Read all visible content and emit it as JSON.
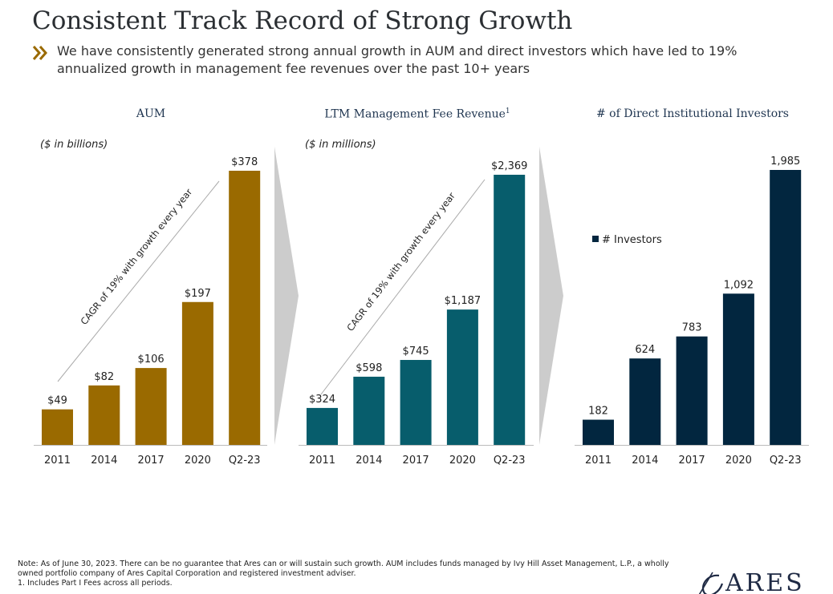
{
  "title": "Consistent Track Record of Strong Growth",
  "subtitle": "We have consistently generated strong annual growth in AUM and direct investors which have led to 19% annualized growth in management fee revenues over the past 10+ years",
  "note": "Note: As of June 30, 2023. There can be no guarantee that Ares can or will sustain such growth. AUM includes funds managed by Ivy Hill Asset Management, L.P., a wholly owned portfolio company of Ares Capital Corporation and registered investment adviser.",
  "footnote": "1.      Includes Part I Fees across all periods.",
  "logo": "ARES",
  "colors": {
    "aum": "#9a6a00",
    "fee": "#075d6c",
    "investors": "#02263f",
    "arrow": "#cccccc"
  },
  "chart_data": [
    {
      "type": "bar",
      "title": "AUM",
      "units": "($ in billions)",
      "categories": [
        "2011",
        "2014",
        "2017",
        "2020",
        "Q2-23"
      ],
      "values": [
        49,
        82,
        106,
        197,
        378
      ],
      "value_labels": [
        "$49",
        "$82",
        "$106",
        "$197",
        "$378"
      ],
      "annotation": "CAGR of 19% with growth every year",
      "ylim": [
        0,
        378
      ]
    },
    {
      "type": "bar",
      "title": "LTM Management Fee Revenue",
      "title_sup": "1",
      "units": "($ in millions)",
      "categories": [
        "2011",
        "2014",
        "2017",
        "2020",
        "Q2-23"
      ],
      "values": [
        324,
        598,
        745,
        1187,
        2369
      ],
      "value_labels": [
        "$324",
        "$598",
        "$745",
        "$1,187",
        "$2,369"
      ],
      "annotation": "CAGR of 19% with growth every year",
      "ylim": [
        0,
        2369
      ]
    },
    {
      "type": "bar",
      "title": "# of Direct Institutional Investors",
      "legend": "# Investors",
      "categories": [
        "2011",
        "2014",
        "2017",
        "2020",
        "Q2-23"
      ],
      "values": [
        182,
        624,
        783,
        1092,
        1985
      ],
      "value_labels": [
        "182",
        "624",
        "783",
        "1,092",
        "1,985"
      ],
      "ylim": [
        0,
        1985
      ]
    }
  ]
}
